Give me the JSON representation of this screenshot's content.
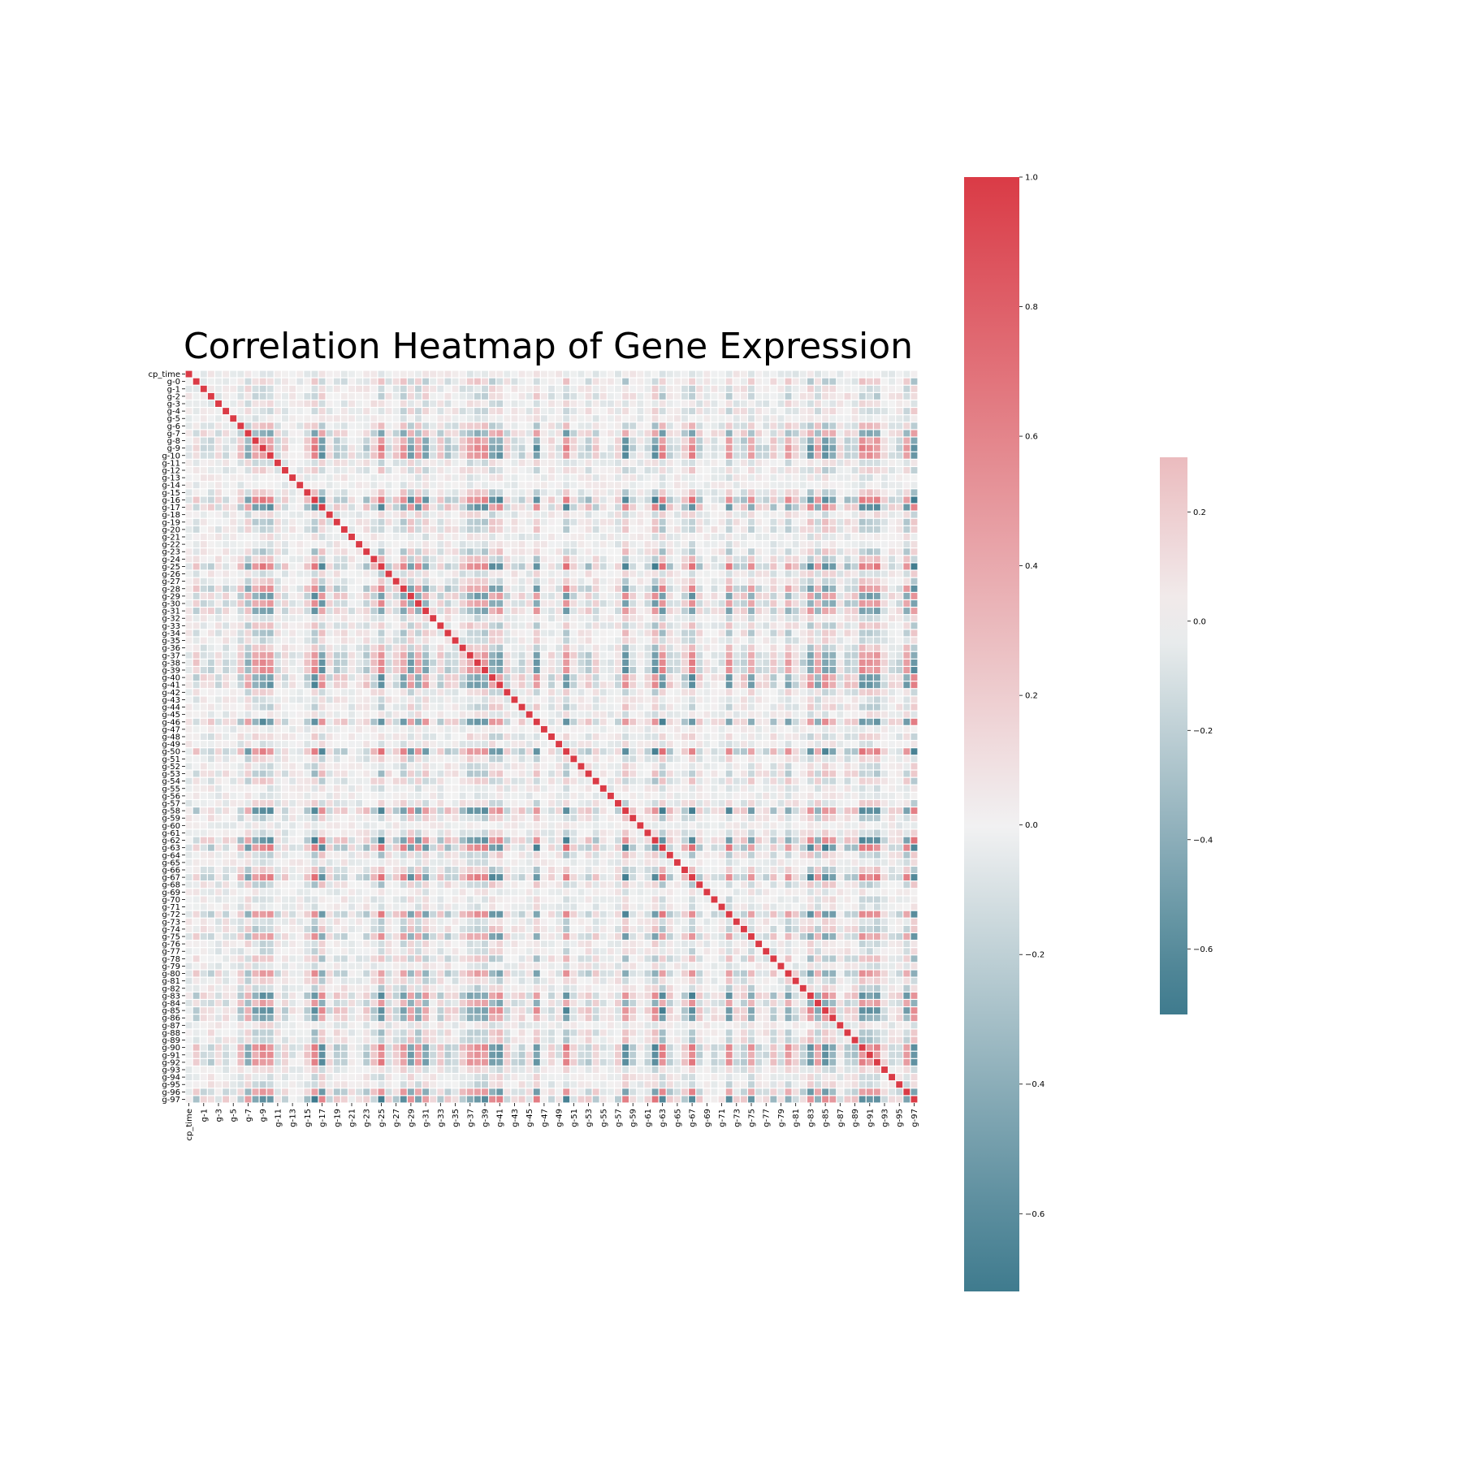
{
  "chart_data": {
    "type": "heatmap",
    "title": "Correlation Heatmap of Gene Expression",
    "xlabel": "",
    "ylabel": "",
    "variables": [
      "cp_time",
      "g-0",
      "g-1",
      "g-2",
      "g-3",
      "g-4",
      "g-5",
      "g-6",
      "g-7",
      "g-8",
      "g-9",
      "g-10",
      "g-11",
      "g-12",
      "g-13",
      "g-14",
      "g-15",
      "g-16",
      "g-17",
      "g-18",
      "g-19",
      "g-20",
      "g-21",
      "g-22",
      "g-23",
      "g-24",
      "g-25",
      "g-26",
      "g-27",
      "g-28",
      "g-29",
      "g-30",
      "g-31",
      "g-32",
      "g-33",
      "g-34",
      "g-35",
      "g-36",
      "g-37",
      "g-38",
      "g-39",
      "g-40",
      "g-41",
      "g-42",
      "g-43",
      "g-44",
      "g-45",
      "g-46",
      "g-47",
      "g-48",
      "g-49",
      "g-50",
      "g-51",
      "g-52",
      "g-53",
      "g-54",
      "g-55",
      "g-56",
      "g-57",
      "g-58",
      "g-59",
      "g-60",
      "g-61",
      "g-62",
      "g-63",
      "g-64",
      "g-65",
      "g-66",
      "g-67",
      "g-68",
      "g-69",
      "g-70",
      "g-71",
      "g-72",
      "g-73",
      "g-74",
      "g-75",
      "g-76",
      "g-77",
      "g-78",
      "g-79",
      "g-80",
      "g-81",
      "g-82",
      "g-83",
      "g-84",
      "g-85",
      "g-86",
      "g-87",
      "g-88",
      "g-89",
      "g-90",
      "g-91",
      "g-92",
      "g-93",
      "g-94",
      "g-95",
      "g-96",
      "g-97"
    ],
    "x_tick_labels": [
      "cp_time",
      "g-1",
      "g-3",
      "g-5",
      "g-7",
      "g-9",
      "g-11",
      "g-13",
      "g-15",
      "g-17",
      "g-19",
      "g-21",
      "g-23",
      "g-25",
      "g-27",
      "g-29",
      "g-31",
      "g-33",
      "g-35",
      "g-37",
      "g-39",
      "g-41",
      "g-43",
      "g-45",
      "g-47",
      "g-49",
      "g-51",
      "g-53",
      "g-55",
      "g-57",
      "g-59",
      "g-61",
      "g-63",
      "g-65",
      "g-67",
      "g-69",
      "g-71",
      "g-73",
      "g-75",
      "g-77",
      "g-79",
      "g-81",
      "g-83",
      "g-85",
      "g-87",
      "g-89",
      "g-91",
      "g-93",
      "g-95",
      "g-97"
    ],
    "diagonal_value": 1.0,
    "value_range": [
      -0.7,
      1.0
    ],
    "colormap": {
      "low": "#3f7b8e",
      "mid": "#f2f2f2",
      "high": "#da3b46"
    },
    "grid": false,
    "colorbars": [
      {
        "vmin": -0.72,
        "vmax": 1.0,
        "ticks": [
          1.0,
          0.8,
          0.6,
          0.4,
          0.2,
          0.0,
          -0.2,
          -0.4,
          -0.6
        ],
        "tick_labels": [
          "1.0",
          "0.8",
          "0.6",
          "0.4",
          "0.2",
          "0.0",
          "−0.2",
          "−0.4",
          "−0.6"
        ]
      },
      {
        "vmin": -0.72,
        "vmax": 0.3,
        "ticks": [
          0.2,
          0.0,
          -0.2,
          -0.4,
          -0.6
        ],
        "tick_labels": [
          "0.2",
          "0.0",
          "−0.2",
          "−0.4",
          "−0.6"
        ]
      }
    ]
  }
}
